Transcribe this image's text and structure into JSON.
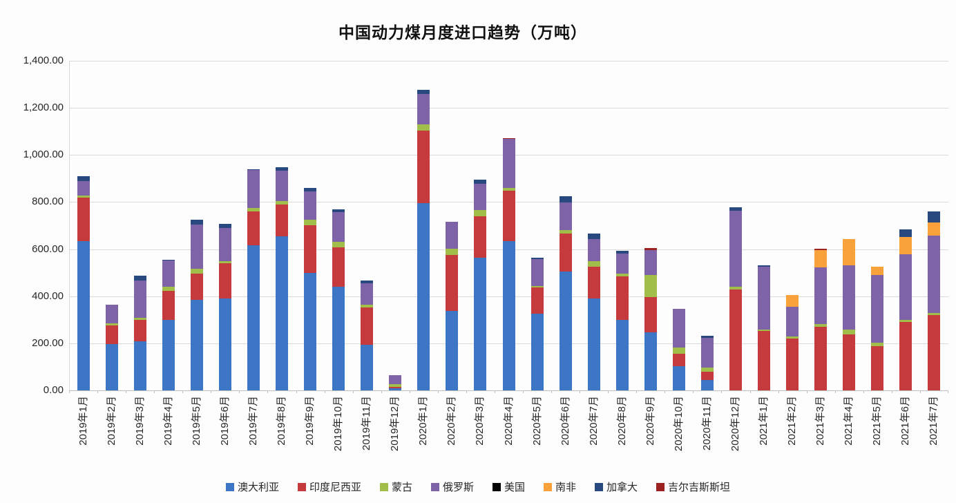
{
  "title": "中国动力煤月度进口趋势（万吨）",
  "chart_data": {
    "type": "bar",
    "stacked": true,
    "title": "中国动力煤月度进口趋势（万吨）",
    "unit": "万吨",
    "grid": true,
    "legend_position": "bottom",
    "ylim": [
      0,
      1400
    ],
    "y_ticks": [
      {
        "value": 0,
        "label": "0.00"
      },
      {
        "value": 200,
        "label": "200.00"
      },
      {
        "value": 400,
        "label": "400.00"
      },
      {
        "value": 600,
        "label": "600.00"
      },
      {
        "value": 800,
        "label": "800.00"
      },
      {
        "value": 1000,
        "label": "1,000.00"
      },
      {
        "value": 1200,
        "label": "1,200.00"
      },
      {
        "value": 1400,
        "label": "1,400.00"
      }
    ],
    "categories": [
      "2019年1月",
      "2019年2月",
      "2019年3月",
      "2019年4月",
      "2019年5月",
      "2019年6月",
      "2019年7月",
      "2019年8月",
      "2019年9月",
      "2019年10月",
      "2019年11月",
      "2019年12月",
      "2020年1月",
      "2020年2月",
      "2020年3月",
      "2020年4月",
      "2020年5月",
      "2020年6月",
      "2020年7月",
      "2020年8月",
      "2020年9月",
      "2020年10月",
      "2020年11月",
      "2020年12月",
      "2021年1月",
      "2021年2月",
      "2021年3月",
      "2021年4月",
      "2021年5月",
      "2021年6月",
      "2021年7月"
    ],
    "series": [
      {
        "name": "澳大利亚",
        "color": "#3d76c4",
        "values": [
          635,
          197,
          207,
          300,
          384,
          390,
          617,
          656,
          499,
          440,
          194,
          10,
          795,
          338,
          564,
          633,
          327,
          506,
          390,
          300,
          248,
          103,
          44,
          0,
          0,
          0,
          0,
          0,
          0,
          0,
          0
        ]
      },
      {
        "name": "印度尼西亚",
        "color": "#c53b3d",
        "values": [
          185,
          78,
          93,
          123,
          113,
          150,
          143,
          133,
          202,
          169,
          157,
          4,
          310,
          236,
          177,
          214,
          110,
          160,
          135,
          183,
          148,
          54,
          35,
          430,
          253,
          221,
          270,
          238,
          189,
          290,
          320
        ]
      },
      {
        "name": "蒙古",
        "color": "#a2be4a",
        "values": [
          8,
          10,
          8,
          18,
          20,
          10,
          15,
          15,
          23,
          23,
          12,
          13,
          25,
          27,
          25,
          13,
          5,
          15,
          23,
          12,
          93,
          25,
          19,
          10,
          5,
          8,
          13,
          20,
          15,
          8,
          8
        ]
      },
      {
        "name": "俄罗斯",
        "color": "#7e63a8",
        "values": [
          60,
          80,
          160,
          110,
          187,
          140,
          160,
          128,
          120,
          125,
          92,
          37,
          128,
          114,
          113,
          207,
          115,
          118,
          94,
          87,
          108,
          165,
          125,
          322,
          266,
          126,
          239,
          274,
          285,
          280,
          330
        ]
      },
      {
        "name": "美国",
        "color": "#000000",
        "values": [
          0,
          0,
          0,
          0,
          0,
          0,
          0,
          0,
          0,
          0,
          0,
          0,
          0,
          0,
          0,
          0,
          0,
          0,
          0,
          0,
          0,
          0,
          0,
          0,
          0,
          0,
          0,
          0,
          0,
          0,
          0
        ]
      },
      {
        "name": "南非",
        "color": "#f9a23c",
        "values": [
          0,
          0,
          0,
          0,
          0,
          0,
          0,
          0,
          0,
          0,
          0,
          0,
          0,
          0,
          0,
          0,
          0,
          0,
          0,
          0,
          0,
          0,
          0,
          0,
          0,
          51,
          73,
          110,
          36,
          75,
          55
        ]
      },
      {
        "name": "加拿大",
        "color": "#27497f",
        "values": [
          22,
          0,
          20,
          5,
          20,
          18,
          5,
          16,
          15,
          13,
          13,
          0,
          18,
          0,
          15,
          0,
          8,
          25,
          25,
          10,
          0,
          0,
          10,
          16,
          8,
          0,
          0,
          0,
          0,
          30,
          48
        ]
      },
      {
        "name": "吉尔吉斯斯坦",
        "color": "#9c2121",
        "values": [
          0,
          0,
          0,
          0,
          0,
          0,
          0,
          0,
          0,
          0,
          0,
          0,
          0,
          0,
          0,
          5,
          0,
          0,
          0,
          0,
          7,
          0,
          0,
          0,
          0,
          0,
          8,
          0,
          0,
          0,
          0
        ]
      }
    ]
  }
}
